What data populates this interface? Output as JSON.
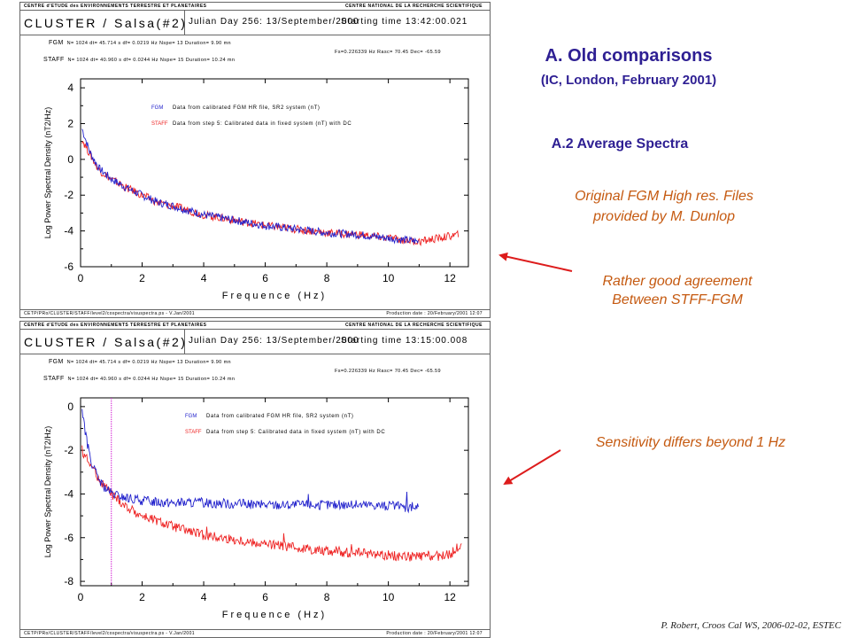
{
  "slide": {
    "title": "A. Old comparisons",
    "subtitle": "(IC, London, February 2001)",
    "section": "A.2 Average Spectra",
    "note_files": [
      "Original FGM High res. Files",
      "provided by M. Dunlop"
    ],
    "note_agreement": [
      "Rather good agreement",
      "Between STFF-FGM"
    ],
    "note_sensitivity": "Sensitivity differs beyond 1 Hz",
    "footer": "P. Robert, Croos Cal WS, 2006-02-02, ESTEC",
    "colors": {
      "title": "#2e1f93",
      "note": "#c55a11",
      "arrow": "#dd1c1c"
    }
  },
  "panels": [
    {
      "header_left": "CENTRE d'ETUDE des ENVIRONNEMENTS TERRESTRE ET PLANETAIRES",
      "header_right": "CENTRE NATIONAL DE LA RECHERCHE SCIENTIFIQUE",
      "instrument": "CLUSTER / Salsa(#2)",
      "julian": "Julian Day  256: 13/September/2000",
      "start": "Starting time 13:42:00.021",
      "fgm_label": "FGM",
      "fgm_params": "N= 1024   dt= 45.714 s   df= 0.0219 Hz    Nspe= 13    Duration=  9.90 mn",
      "staff_label": "STAFF",
      "staff_params": "N= 1024   dt= 40.960 s   df= 0.0244 Hz    Nspe= 15    Duration= 10.24 mn",
      "fs_info": "Fs=0.226339 Hz   Rasc= 70.45  Dec= -65.59",
      "legend_fgm_name": "FGM",
      "legend_fgm_text": "Data from calibrated FGM HR file, SR2 system (nT)",
      "legend_staff_name": "STAFF",
      "legend_staff_text": "Data from step 5: Calibrated data in fixed system (nT) with DC",
      "xlabel": "Frequence (Hz)",
      "ylabel": "Log  Power Spectral Density  (nT2/Hz)",
      "footer_left": "CETP/PRo/CLUSTER/STAFF/level2/cospectra/visuspectra.ps - V.Jan/2001",
      "footer_right": "Production date : 20/February/2001 12:07",
      "x_ticks": [
        "0",
        "2",
        "4",
        "6",
        "8",
        "10",
        "12"
      ],
      "y_ticks": [
        "4",
        "2",
        "0",
        "-2",
        "-4",
        "-6"
      ]
    },
    {
      "header_left": "CENTRE d'ETUDE des ENVIRONNEMENTS TERRESTRE ET PLANETAIRES",
      "header_right": "CENTRE NATIONAL DE LA RECHERCHE SCIENTIFIQUE",
      "instrument": "CLUSTER / Salsa(#2)",
      "julian": "Julian Day  256: 13/September/2000",
      "start": "Starting time 13:15:00.008",
      "fgm_label": "FGM",
      "fgm_params": "N= 1024   dt= 45.714 s   df= 0.0219 Hz    Nspe= 13    Duration=  9.90 mn",
      "staff_label": "STAFF",
      "staff_params": "N= 1024   dt= 40.960 s   df= 0.0244 Hz    Nspe= 15    Duration= 10.24 mn",
      "fs_info": "Fs=0.226339 Hz   Rasc= 70.45  Dec= -65.59",
      "legend_fgm_name": "FGM",
      "legend_fgm_text": "Data from calibrated FGM HR file, SR2 system (nT)",
      "legend_staff_name": "STAFF",
      "legend_staff_text": "Data from step 5: Calibrated data in fixed system (nT) with DC",
      "xlabel": "Frequence (Hz)",
      "ylabel": "Log  Power Spectral Density  (nT2/Hz)",
      "footer_left": "CETP/PRo/CLUSTER/STAFF/level2/cospectra/visuspectra.ps - V.Jan/2001",
      "footer_right": "Production date : 20/February/2001 12:07",
      "x_ticks": [
        "0",
        "2",
        "4",
        "6",
        "8",
        "10",
        "12"
      ],
      "y_ticks": [
        "0",
        "-2",
        "-4",
        "-6",
        "-8"
      ]
    }
  ],
  "chart_data": [
    {
      "type": "line",
      "xlabel": "Frequence (Hz)",
      "ylabel": "Log  Power Spectral Density  (nT2/Hz)",
      "xlim": [
        0,
        12.6
      ],
      "ylim": [
        -6,
        4.5
      ],
      "series": [
        {
          "name": "FGM",
          "color": "#2222cc",
          "x": [
            0.05,
            0.3,
            0.6,
            1,
            1.5,
            2,
            2.5,
            3,
            4,
            5,
            6,
            7,
            8,
            9,
            10,
            11
          ],
          "y": [
            1.7,
            0.4,
            -0.5,
            -1.1,
            -1.6,
            -2,
            -2.4,
            -2.6,
            -3.1,
            -3.4,
            -3.7,
            -3.9,
            -4.1,
            -4.2,
            -4.4,
            -4.6
          ]
        },
        {
          "name": "STAFF",
          "color": "#ee2222",
          "x": [
            0.05,
            0.3,
            0.6,
            1,
            1.5,
            2,
            2.5,
            3,
            4,
            5,
            6,
            7,
            8,
            9,
            10,
            11,
            12.3
          ],
          "y": [
            1.1,
            0.3,
            -0.6,
            -1.1,
            -1.6,
            -2,
            -2.4,
            -2.6,
            -3.1,
            -3.4,
            -3.7,
            -3.9,
            -4.1,
            -4.2,
            -4.4,
            -4.6,
            -4.2
          ]
        }
      ]
    },
    {
      "type": "line",
      "xlabel": "Frequence (Hz)",
      "ylabel": "Log  Power Spectral Density  (nT2/Hz)",
      "xlim": [
        0,
        12.6
      ],
      "ylim": [
        -8.2,
        0.4
      ],
      "marker_x": 1,
      "series": [
        {
          "name": "FGM",
          "color": "#2222cc",
          "x": [
            0.05,
            0.2,
            0.4,
            0.7,
            1,
            1.5,
            2,
            3,
            4,
            6,
            8,
            9.5,
            10.6,
            11
          ],
          "y": [
            -0.1,
            -1.6,
            -2.8,
            -3.6,
            -4,
            -4.2,
            -4.3,
            -4.4,
            -4.4,
            -4.5,
            -4.5,
            -4.5,
            -4.6,
            -4.6
          ],
          "spikes": [
            [
              7.4,
              -4.0
            ],
            [
              10.6,
              -3.9
            ]
          ]
        },
        {
          "name": "STAFF",
          "color": "#ee2222",
          "x": [
            0.05,
            0.3,
            0.6,
            1,
            1.5,
            2,
            3,
            4,
            5,
            6,
            8,
            10,
            11,
            12,
            12.4
          ],
          "y": [
            -2,
            -2.6,
            -3.3,
            -4,
            -4.6,
            -5,
            -5.5,
            -5.9,
            -6.1,
            -6.3,
            -6.6,
            -6.8,
            -6.9,
            -6.8,
            -6.2
          ],
          "spikes": [
            [
              4.1,
              -5.5
            ],
            [
              6.6,
              -5.8
            ],
            [
              8.8,
              -6.3
            ],
            [
              11.3,
              -6.6
            ],
            [
              12.5,
              -5.6
            ]
          ]
        }
      ]
    }
  ]
}
